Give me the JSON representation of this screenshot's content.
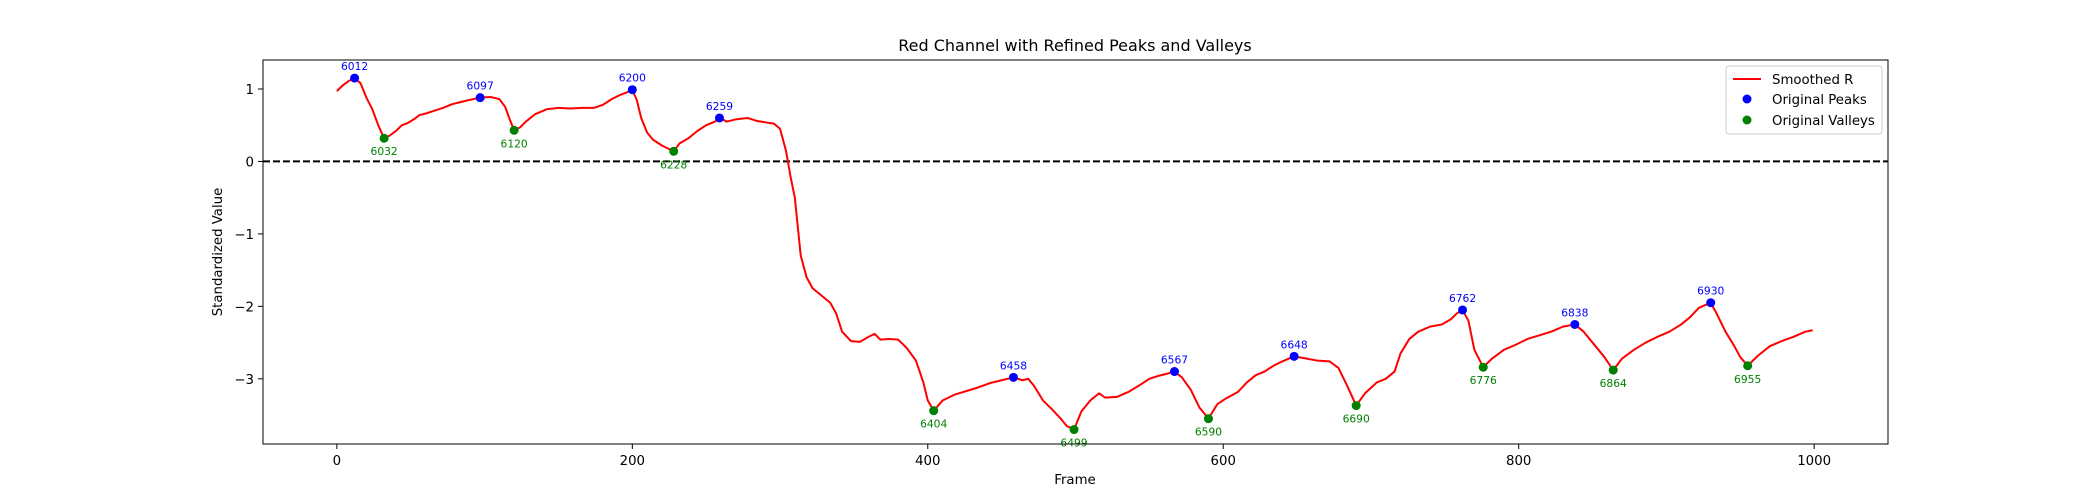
{
  "chart_data": {
    "type": "line",
    "title": "Red Channel with Refined Peaks and Valleys",
    "xlabel": "Frame",
    "ylabel": "Standardized Value",
    "xlim": [
      -50,
      1050
    ],
    "ylim": [
      -3.9,
      1.4
    ],
    "xticks": [
      0,
      200,
      400,
      600,
      800,
      1000
    ],
    "yticks": [
      -3,
      -2,
      -1,
      0,
      1
    ],
    "ytick_labels": [
      "−3",
      "−2",
      "−1",
      "0",
      "1"
    ],
    "grid": false,
    "legend_position": "top-right",
    "reference_line": {
      "y": 0,
      "style": "dashed",
      "color": "#000000"
    },
    "colors": {
      "line": "#ff0000",
      "peaks": "#0000ff",
      "valleys": "#008000"
    },
    "series": [
      {
        "name": "Smoothed R",
        "kind": "line",
        "points": [
          [
            0,
            0.97
          ],
          [
            4,
            1.05
          ],
          [
            8,
            1.11
          ],
          [
            12,
            1.15
          ],
          [
            16,
            1.08
          ],
          [
            20,
            0.88
          ],
          [
            24,
            0.72
          ],
          [
            28,
            0.5
          ],
          [
            32,
            0.32
          ],
          [
            36,
            0.36
          ],
          [
            40,
            0.42
          ],
          [
            44,
            0.5
          ],
          [
            48,
            0.53
          ],
          [
            52,
            0.58
          ],
          [
            56,
            0.64
          ],
          [
            60,
            0.66
          ],
          [
            66,
            0.7
          ],
          [
            72,
            0.74
          ],
          [
            78,
            0.79
          ],
          [
            84,
            0.82
          ],
          [
            90,
            0.85
          ],
          [
            97,
            0.88
          ],
          [
            104,
            0.89
          ],
          [
            110,
            0.86
          ],
          [
            114,
            0.75
          ],
          [
            117,
            0.58
          ],
          [
            120,
            0.43
          ],
          [
            124,
            0.47
          ],
          [
            128,
            0.55
          ],
          [
            134,
            0.65
          ],
          [
            142,
            0.72
          ],
          [
            150,
            0.74
          ],
          [
            158,
            0.73
          ],
          [
            166,
            0.74
          ],
          [
            174,
            0.74
          ],
          [
            180,
            0.78
          ],
          [
            186,
            0.86
          ],
          [
            192,
            0.92
          ],
          [
            196,
            0.95
          ],
          [
            200,
            0.99
          ],
          [
            203,
            0.85
          ],
          [
            206,
            0.6
          ],
          [
            210,
            0.4
          ],
          [
            214,
            0.3
          ],
          [
            220,
            0.22
          ],
          [
            224,
            0.18
          ],
          [
            228,
            0.14
          ],
          [
            232,
            0.25
          ],
          [
            238,
            0.32
          ],
          [
            244,
            0.42
          ],
          [
            250,
            0.5
          ],
          [
            256,
            0.55
          ],
          [
            259,
            0.6
          ],
          [
            264,
            0.55
          ],
          [
            270,
            0.58
          ],
          [
            278,
            0.6
          ],
          [
            284,
            0.56
          ],
          [
            290,
            0.54
          ],
          [
            296,
            0.52
          ],
          [
            300,
            0.45
          ],
          [
            304,
            0.15
          ],
          [
            307,
            -0.2
          ],
          [
            310,
            -0.5
          ],
          [
            312,
            -0.9
          ],
          [
            314,
            -1.3
          ],
          [
            318,
            -1.6
          ],
          [
            322,
            -1.75
          ],
          [
            328,
            -1.85
          ],
          [
            334,
            -1.95
          ],
          [
            338,
            -2.1
          ],
          [
            342,
            -2.35
          ],
          [
            348,
            -2.48
          ],
          [
            354,
            -2.49
          ],
          [
            360,
            -2.42
          ],
          [
            364,
            -2.38
          ],
          [
            368,
            -2.46
          ],
          [
            374,
            -2.45
          ],
          [
            380,
            -2.46
          ],
          [
            386,
            -2.58
          ],
          [
            392,
            -2.75
          ],
          [
            397,
            -3.05
          ],
          [
            400,
            -3.3
          ],
          [
            404,
            -3.44
          ],
          [
            410,
            -3.3
          ],
          [
            418,
            -3.22
          ],
          [
            426,
            -3.17
          ],
          [
            434,
            -3.12
          ],
          [
            442,
            -3.06
          ],
          [
            450,
            -3.02
          ],
          [
            458,
            -2.98
          ],
          [
            464,
            -3.02
          ],
          [
            468,
            -3.0
          ],
          [
            472,
            -3.1
          ],
          [
            478,
            -3.3
          ],
          [
            484,
            -3.42
          ],
          [
            490,
            -3.55
          ],
          [
            494,
            -3.65
          ],
          [
            499,
            -3.7
          ],
          [
            504,
            -3.45
          ],
          [
            510,
            -3.3
          ],
          [
            516,
            -3.2
          ],
          [
            520,
            -3.26
          ],
          [
            528,
            -3.25
          ],
          [
            536,
            -3.18
          ],
          [
            544,
            -3.08
          ],
          [
            550,
            -3.0
          ],
          [
            556,
            -2.96
          ],
          [
            562,
            -2.93
          ],
          [
            567,
            -2.9
          ],
          [
            572,
            -2.98
          ],
          [
            578,
            -3.15
          ],
          [
            584,
            -3.4
          ],
          [
            590,
            -3.55
          ],
          [
            596,
            -3.35
          ],
          [
            602,
            -3.27
          ],
          [
            610,
            -3.18
          ],
          [
            616,
            -3.05
          ],
          [
            622,
            -2.95
          ],
          [
            628,
            -2.9
          ],
          [
            634,
            -2.82
          ],
          [
            640,
            -2.76
          ],
          [
            648,
            -2.69
          ],
          [
            656,
            -2.72
          ],
          [
            664,
            -2.75
          ],
          [
            672,
            -2.76
          ],
          [
            678,
            -2.85
          ],
          [
            684,
            -3.1
          ],
          [
            690,
            -3.37
          ],
          [
            696,
            -3.2
          ],
          [
            704,
            -3.05
          ],
          [
            710,
            -3.0
          ],
          [
            716,
            -2.9
          ],
          [
            720,
            -2.65
          ],
          [
            726,
            -2.45
          ],
          [
            732,
            -2.35
          ],
          [
            740,
            -2.28
          ],
          [
            748,
            -2.25
          ],
          [
            754,
            -2.18
          ],
          [
            758,
            -2.1
          ],
          [
            762,
            -2.05
          ],
          [
            766,
            -2.2
          ],
          [
            770,
            -2.6
          ],
          [
            776,
            -2.84
          ],
          [
            782,
            -2.72
          ],
          [
            790,
            -2.6
          ],
          [
            798,
            -2.53
          ],
          [
            806,
            -2.45
          ],
          [
            814,
            -2.4
          ],
          [
            822,
            -2.35
          ],
          [
            830,
            -2.28
          ],
          [
            838,
            -2.25
          ],
          [
            844,
            -2.35
          ],
          [
            852,
            -2.55
          ],
          [
            858,
            -2.7
          ],
          [
            864,
            -2.88
          ],
          [
            870,
            -2.72
          ],
          [
            878,
            -2.6
          ],
          [
            886,
            -2.5
          ],
          [
            894,
            -2.42
          ],
          [
            902,
            -2.35
          ],
          [
            910,
            -2.25
          ],
          [
            916,
            -2.15
          ],
          [
            922,
            -2.02
          ],
          [
            930,
            -1.95
          ],
          [
            934,
            -2.1
          ],
          [
            940,
            -2.35
          ],
          [
            946,
            -2.55
          ],
          [
            950,
            -2.7
          ],
          [
            955,
            -2.82
          ],
          [
            962,
            -2.68
          ],
          [
            970,
            -2.55
          ],
          [
            978,
            -2.48
          ],
          [
            986,
            -2.42
          ],
          [
            994,
            -2.35
          ],
          [
            999,
            -2.33
          ]
        ]
      },
      {
        "name": "Original Peaks",
        "kind": "scatter",
        "points": [
          {
            "x": 12,
            "y": 1.15,
            "label": "6012"
          },
          {
            "x": 97,
            "y": 0.88,
            "label": "6097"
          },
          {
            "x": 200,
            "y": 0.99,
            "label": "6200"
          },
          {
            "x": 259,
            "y": 0.6,
            "label": "6259"
          },
          {
            "x": 458,
            "y": -2.98,
            "label": "6458"
          },
          {
            "x": 567,
            "y": -2.9,
            "label": "6567"
          },
          {
            "x": 648,
            "y": -2.69,
            "label": "6648"
          },
          {
            "x": 762,
            "y": -2.05,
            "label": "6762"
          },
          {
            "x": 838,
            "y": -2.25,
            "label": "6838"
          },
          {
            "x": 930,
            "y": -1.95,
            "label": "6930"
          }
        ]
      },
      {
        "name": "Original Valleys",
        "kind": "scatter",
        "points": [
          {
            "x": 32,
            "y": 0.32,
            "label": "6032"
          },
          {
            "x": 120,
            "y": 0.43,
            "label": "6120"
          },
          {
            "x": 228,
            "y": 0.14,
            "label": "6228"
          },
          {
            "x": 404,
            "y": -3.44,
            "label": "6404"
          },
          {
            "x": 499,
            "y": -3.7,
            "label": "6499"
          },
          {
            "x": 590,
            "y": -3.55,
            "label": "6590"
          },
          {
            "x": 690,
            "y": -3.37,
            "label": "6690"
          },
          {
            "x": 776,
            "y": -2.84,
            "label": "6776"
          },
          {
            "x": 864,
            "y": -2.88,
            "label": "6864"
          },
          {
            "x": 955,
            "y": -2.82,
            "label": "6955"
          }
        ]
      }
    ]
  }
}
